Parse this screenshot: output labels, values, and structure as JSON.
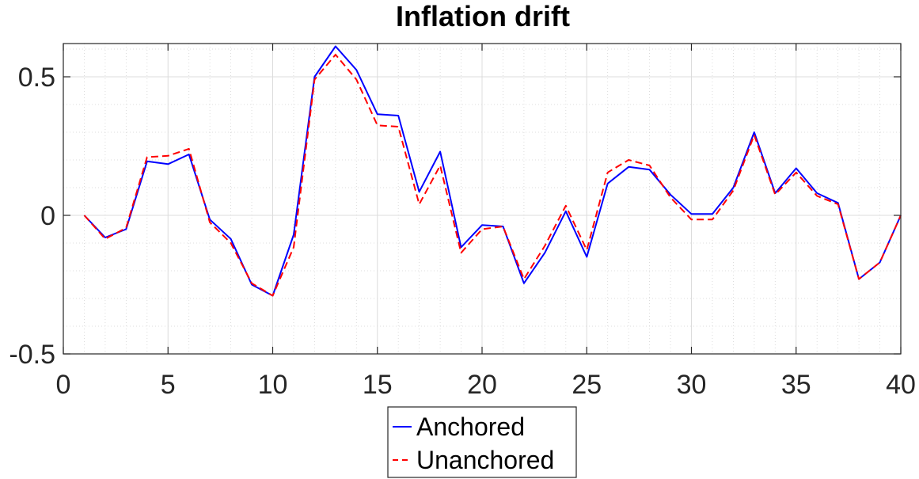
{
  "chart_data": {
    "type": "line",
    "title": "Inflation drift",
    "xlabel": "",
    "ylabel": "",
    "xlim": [
      0,
      40
    ],
    "ylim": [
      -0.5,
      0.62
    ],
    "xticks": [
      "0",
      "5",
      "10",
      "15",
      "20",
      "25",
      "30",
      "35",
      "40"
    ],
    "yticks": [
      "-0.5",
      "0",
      "0.5"
    ],
    "grid": true,
    "minor_grid": true,
    "legend_position": "bottom-center",
    "x": [
      1,
      2,
      3,
      4,
      5,
      6,
      7,
      8,
      9,
      10,
      11,
      12,
      13,
      14,
      15,
      16,
      17,
      18,
      19,
      20,
      21,
      22,
      23,
      24,
      25,
      26,
      27,
      28,
      29,
      30,
      31,
      32,
      33,
      34,
      35,
      36,
      37,
      38,
      39,
      40
    ],
    "series": [
      {
        "name": "Anchored",
        "color": "#0000ff",
        "style": "solid",
        "values": [
          0.0,
          -0.08,
          -0.05,
          0.195,
          0.185,
          0.22,
          -0.015,
          -0.085,
          -0.25,
          -0.29,
          -0.07,
          0.5,
          0.61,
          0.525,
          0.365,
          0.36,
          0.085,
          0.23,
          -0.115,
          -0.035,
          -0.04,
          -0.245,
          -0.135,
          0.015,
          -0.15,
          0.115,
          0.175,
          0.165,
          0.075,
          0.005,
          0.005,
          0.1,
          0.3,
          0.08,
          0.17,
          0.08,
          0.045,
          -0.23,
          -0.17,
          0.0
        ]
      },
      {
        "name": "Unanchored",
        "color": "#ff0000",
        "style": "dashed",
        "values": [
          0.0,
          -0.085,
          -0.045,
          0.21,
          0.215,
          0.24,
          -0.025,
          -0.1,
          -0.245,
          -0.29,
          -0.115,
          0.49,
          0.58,
          0.49,
          0.325,
          0.32,
          0.04,
          0.18,
          -0.135,
          -0.05,
          -0.04,
          -0.23,
          -0.11,
          0.035,
          -0.125,
          0.155,
          0.2,
          0.18,
          0.065,
          -0.015,
          -0.015,
          0.09,
          0.29,
          0.075,
          0.155,
          0.07,
          0.04,
          -0.23,
          -0.17,
          0.0
        ]
      }
    ]
  }
}
